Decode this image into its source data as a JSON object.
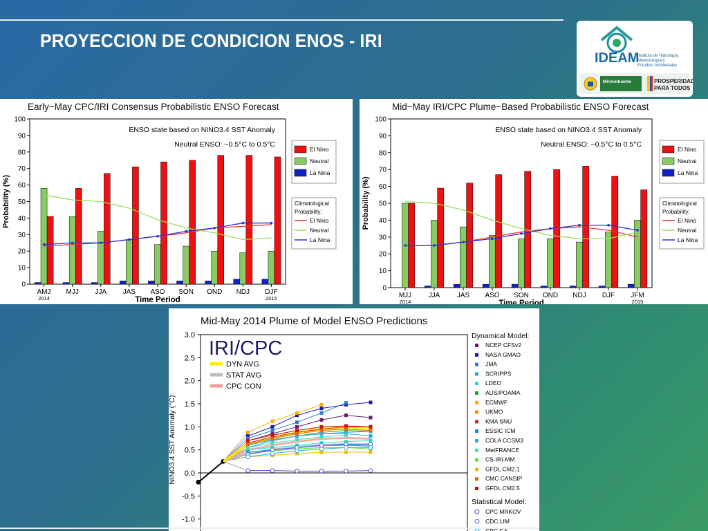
{
  "slide": {
    "title": "PROYECCION DE CONDICION ENOS - IRI",
    "logo": {
      "name": "IDEAM",
      "subtitle_lines": [
        "Instituto de Hidrología,",
        "Meteorología y",
        "Estudios Ambientales"
      ],
      "ministry": "MinAmbiente",
      "motto_lines": [
        "PROSPERIDAD",
        "PARA TODOS"
      ]
    }
  },
  "colors": {
    "el_nino": "#ee1111",
    "neutral": "#88cc66",
    "la_nina": "#1122cc",
    "clim_el_nino": "#ee3333",
    "clim_neutral": "#99dd55",
    "clim_la_nina": "#2233dd"
  },
  "chart_data": [
    {
      "type": "bar",
      "title": "Early−May CPC/IRI Consensus Probabilistic ENSO Forecast",
      "xlabel": "Time Period",
      "ylabel": "Probability (%)",
      "ylim": [
        0,
        100
      ],
      "yticks": [
        0,
        10,
        20,
        30,
        40,
        50,
        60,
        70,
        80,
        90,
        100
      ],
      "categories": [
        "AMJ",
        "MJJ",
        "JJA",
        "JAS",
        "ASO",
        "SON",
        "OND",
        "NDJ",
        "DJF"
      ],
      "year_labels": [
        {
          "category": "AMJ",
          "text": "2014"
        },
        {
          "category": "DJF",
          "text": "2015"
        }
      ],
      "annotation_lines": [
        "ENSO state based on NINO3.4 SST Anomaly",
        "Neutral ENSO: −0.5°C to 0.5°C"
      ],
      "legend": [
        "El Nino",
        "Neutral",
        "La Nina"
      ],
      "clim_legend_title": [
        "Climatological",
        "Probability:"
      ],
      "clim_legend": [
        "El Nino",
        "Neutral",
        "La Nina"
      ],
      "series": [
        {
          "name": "La Nina",
          "values": [
            1,
            1,
            1,
            2,
            2,
            2,
            2,
            3,
            3
          ]
        },
        {
          "name": "Neutral",
          "values": [
            58,
            41,
            32,
            27,
            24,
            23,
            20,
            19,
            20
          ]
        },
        {
          "name": "El Nino",
          "values": [
            41,
            58,
            67,
            71,
            74,
            75,
            78,
            78,
            77
          ]
        }
      ],
      "climatology": [
        {
          "name": "El Nino",
          "values": [
            23,
            24,
            25,
            27,
            29,
            31,
            34,
            35,
            36
          ]
        },
        {
          "name": "Neutral",
          "values": [
            54,
            51,
            50,
            46,
            39,
            34,
            31,
            27,
            28
          ]
        },
        {
          "name": "La Nina",
          "values": [
            24,
            25,
            25,
            27,
            29,
            32,
            34,
            37,
            37
          ]
        }
      ]
    },
    {
      "type": "bar",
      "title": "Mid−May IRI/CPC Plume−Based Probabilistic ENSO Forecast",
      "xlabel": "Time Period",
      "ylabel": "Probability (%)",
      "ylim": [
        0,
        100
      ],
      "yticks": [
        0,
        10,
        20,
        30,
        40,
        50,
        60,
        70,
        80,
        90,
        100
      ],
      "categories": [
        "MJJ",
        "JJA",
        "JAS",
        "ASO",
        "SON",
        "OND",
        "NDJ",
        "DJF",
        "JFM"
      ],
      "year_labels": [
        {
          "category": "MJJ",
          "text": "2014"
        },
        {
          "category": "JFM",
          "text": "2015"
        }
      ],
      "annotation_lines": [
        "ENSO state based on NINO3.4 SST Anomaly",
        "Neutral ENSO: −0.5°C to 0.5°C"
      ],
      "legend": [
        "El Nino",
        "Neutral",
        "La Nina"
      ],
      "clim_legend_title": [
        "Climatological",
        "Probability:"
      ],
      "clim_legend": [
        "El Nino",
        "Neutral",
        "La Nina"
      ],
      "series": [
        {
          "name": "La Nina",
          "values": [
            0,
            1,
            2,
            2,
            2,
            1,
            1,
            1,
            2
          ]
        },
        {
          "name": "Neutral",
          "values": [
            50,
            40,
            36,
            31,
            29,
            29,
            27,
            33,
            40
          ]
        },
        {
          "name": "El Nino",
          "values": [
            50,
            59,
            62,
            67,
            69,
            70,
            72,
            66,
            58
          ]
        }
      ],
      "climatology": [
        {
          "name": "El Nino",
          "values": [
            25,
            25,
            27,
            30,
            33,
            35,
            36,
            34,
            30
          ]
        },
        {
          "name": "Neutral",
          "values": [
            51,
            50,
            46,
            40,
            35,
            31,
            29,
            29,
            33
          ]
        },
        {
          "name": "La Nina",
          "values": [
            25,
            25,
            27,
            29,
            32,
            35,
            37,
            37,
            34
          ]
        }
      ]
    },
    {
      "type": "line",
      "title": "Mid-May 2014 Plume of Model ENSO Predictions",
      "ylabel": "NINO3.4 SST Anomaly (°C)",
      "ylim": [
        -1.5,
        3.0
      ],
      "yticks": [
        "3.0",
        "2.5",
        "2.0",
        "1.5",
        "1.0",
        "0.5",
        "0.0",
        "-0.5",
        "-1.0"
      ],
      "ytick_values": [
        3.0,
        2.5,
        2.0,
        1.5,
        1.0,
        0.5,
        0.0,
        -0.5,
        -1.0
      ],
      "overlay_title": "IRI/CPC",
      "avg_legend": [
        {
          "name": "DYN AVG",
          "color": "#ffee00"
        },
        {
          "name": "STAT AVG",
          "color": "#bbbbbb"
        },
        {
          "name": "CPC CON",
          "color": "#f0a0a0"
        }
      ],
      "observed": [
        -0.2,
        0.25
      ],
      "dynamical_title": "Dynamical Model:",
      "statistical_title": "Statistical Model:",
      "dynamical": [
        {
          "name": "NCEP CFSv2",
          "color": "#6a1a6a",
          "values": [
            0.7,
            0.85,
            1.0,
            1.15,
            1.25,
            1.2
          ]
        },
        {
          "name": "NASA GMAO",
          "color": "#1a1aaa",
          "values": [
            0.8,
            1.0,
            1.25,
            1.4,
            1.48,
            1.53
          ]
        },
        {
          "name": "JMA",
          "color": "#2a7ad4",
          "values": [
            0.75,
            0.92,
            1.1,
            1.3,
            1.52
          ]
        },
        {
          "name": "SCRIPPS",
          "color": "#22aadd",
          "values": [
            0.55,
            0.7,
            0.8,
            0.85,
            0.85,
            0.8
          ]
        },
        {
          "name": "LDEO",
          "color": "#22ddcc",
          "values": [
            0.5,
            0.55,
            0.6,
            0.65,
            0.68,
            0.7
          ]
        },
        {
          "name": "AUS/POAMA",
          "color": "#22aa22",
          "values": [
            0.6,
            0.72,
            0.8,
            0.88,
            0.92,
            0.9
          ]
        },
        {
          "name": "ECMWF",
          "color": "#ffaa00",
          "values": [
            0.88,
            1.12,
            1.3,
            1.48
          ]
        },
        {
          "name": "UKMO",
          "color": "#ff8800",
          "values": [
            0.7,
            0.82,
            0.92,
            1.0
          ]
        },
        {
          "name": "KMA SNU",
          "color": "#dd2222",
          "values": [
            0.65,
            0.78,
            0.88,
            0.95,
            1.0,
            1.0
          ]
        },
        {
          "name": "ESSIC ICM",
          "color": "#1188ee",
          "values": [
            0.45,
            0.5,
            0.55,
            0.6,
            0.6,
            0.58
          ]
        },
        {
          "name": "COLA CCSM3",
          "color": "#33aaee",
          "values": [
            0.6,
            0.72,
            0.8,
            0.85,
            0.88,
            0.9
          ]
        },
        {
          "name": "MetFRANCE",
          "color": "#44ddbb",
          "values": [
            0.55,
            0.65,
            0.72,
            0.78,
            0.82
          ]
        },
        {
          "name": "CS-IRI-MM",
          "color": "#66dd33",
          "values": [
            0.42,
            0.48,
            0.52,
            0.55,
            0.55,
            0.52
          ]
        },
        {
          "name": "GFDL CM2.1",
          "color": "#eebb00",
          "values": [
            0.35,
            0.38,
            0.42,
            0.45,
            0.45,
            0.45
          ]
        },
        {
          "name": "CMC CANSIP",
          "color": "#ee6600",
          "values": [
            0.62,
            0.75,
            0.85,
            0.92,
            0.95,
            0.92
          ]
        },
        {
          "name": "GFDL CM2.5",
          "color": "#cc1111",
          "values": [
            0.7,
            0.82,
            0.92,
            1.0,
            1.02,
            1.0
          ]
        }
      ],
      "statistical": [
        {
          "name": "CPC MRKOV",
          "color": "#6644cc",
          "values": [
            0.05,
            0.05,
            0.04,
            0.04,
            0.04,
            0.05
          ]
        },
        {
          "name": "CDC LIM",
          "color": "#4466ee",
          "values": [
            0.4,
            0.5,
            0.55,
            0.6,
            0.62,
            0.62
          ]
        },
        {
          "name": "CPC CA",
          "color": "#22aaee",
          "values": [
            0.35,
            0.42,
            0.48,
            0.52,
            0.55,
            0.55
          ]
        }
      ],
      "dyn_avg": [
        0.62,
        0.76,
        0.87,
        0.95,
        0.98,
        0.97
      ],
      "stat_avg": [
        0.42,
        0.5,
        0.56,
        0.6,
        0.62,
        0.62
      ],
      "cpc_con": [
        0.5,
        0.6,
        0.68,
        0.74,
        0.76,
        0.74
      ]
    }
  ]
}
